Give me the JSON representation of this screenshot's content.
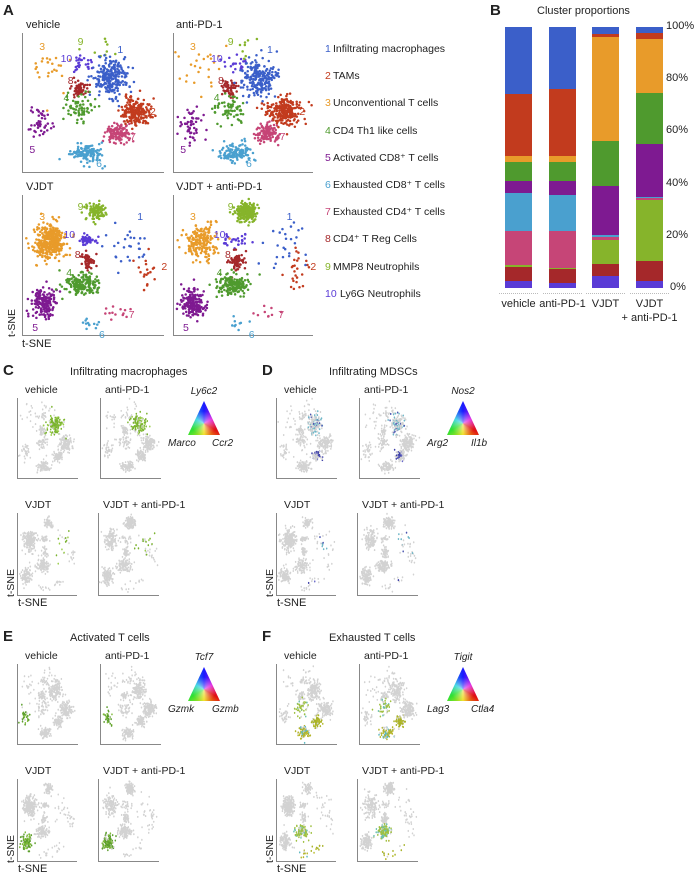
{
  "conditions": [
    "vehicle",
    "anti-PD-1",
    "VJDT",
    "VJDT + anti-PD-1"
  ],
  "axis_label": "t-SNE",
  "panel_a": {
    "letter": "A",
    "legend": [
      {
        "num": "1",
        "label": "Infiltrating macrophages",
        "color": "#3b5fc9"
      },
      {
        "num": "2",
        "label": "TAMs",
        "color": "#c23b1e"
      },
      {
        "num": "3",
        "label": "Unconventional T cells",
        "color": "#e89b2a"
      },
      {
        "num": "4",
        "label": "CD4 Th1 like cells",
        "color": "#4f9a2e"
      },
      {
        "num": "5",
        "label": "Activated CD8⁺ T cells",
        "color": "#7e1a91"
      },
      {
        "num": "6",
        "label": "Exhausted CD8⁺ T cells",
        "color": "#4aa0cf"
      },
      {
        "num": "7",
        "label": "Exhausted CD4⁺ T cells",
        "color": "#c64577"
      },
      {
        "num": "8",
        "label": "CD4⁺ T Reg Cells",
        "color": "#a5282a"
      },
      {
        "num": "9",
        "label": "MMP8 Neutrophils",
        "color": "#86b42b"
      },
      {
        "num": "10",
        "label": "Ly6G Neutrophils",
        "color": "#5a3bd6"
      }
    ]
  },
  "panel_b": {
    "letter": "B"
  },
  "chart_data": {
    "type": "bar",
    "stacked": true,
    "title": "Cluster proportions",
    "categories": [
      "vehicle",
      "anti-PD-1",
      "VJDT",
      "VJDT\n+ anti-PD-1"
    ],
    "category_lines": [
      [
        "vehicle"
      ],
      [
        "anti-PD-1"
      ],
      [
        "VJDT"
      ],
      [
        "VJDT",
        "+ anti-PD-1"
      ]
    ],
    "yticks": [
      "0%",
      "20%",
      "40%",
      "60%",
      "80%",
      "100%"
    ],
    "ylim": [
      0,
      100
    ],
    "stack_order_bottom_to_top": [
      "10",
      "8",
      "9",
      "7",
      "6",
      "5",
      "4",
      "3",
      "2",
      "1"
    ],
    "series": [
      {
        "cluster": "10",
        "values": [
          2.5,
          1.9,
          4.5,
          2.8
        ]
      },
      {
        "cluster": "8",
        "values": [
          5.7,
          5.5,
          4.7,
          7.6
        ]
      },
      {
        "cluster": "9",
        "values": [
          0.5,
          0.4,
          9.3,
          23.3
        ]
      },
      {
        "cluster": "7",
        "values": [
          13.0,
          13.9,
          1.0,
          0.6
        ]
      },
      {
        "cluster": "6",
        "values": [
          14.6,
          14.0,
          0.9,
          0.6
        ]
      },
      {
        "cluster": "5",
        "values": [
          4.7,
          5.4,
          18.5,
          20.1
        ]
      },
      {
        "cluster": "4",
        "values": [
          7.4,
          7.0,
          17.6,
          19.6
        ]
      },
      {
        "cluster": "3",
        "values": [
          2.2,
          2.3,
          39.5,
          20.8
        ]
      },
      {
        "cluster": "2",
        "values": [
          23.7,
          25.7,
          1.5,
          2.3
        ]
      },
      {
        "cluster": "1",
        "values": [
          25.7,
          23.9,
          2.5,
          2.3
        ]
      }
    ]
  },
  "panel_c": {
    "letter": "C",
    "title": "Infiltrating macrophages",
    "genes": {
      "top": "Ly6c2",
      "left": "Marco",
      "right": "Ccr2"
    }
  },
  "panel_d": {
    "letter": "D",
    "title": "Infiltrating MDSCs",
    "genes": {
      "top": "Nos2",
      "left": "Arg2",
      "right": "Il1b"
    }
  },
  "panel_e": {
    "letter": "E",
    "title": "Activated T cells",
    "genes": {
      "top": "Tcf7",
      "left": "Gzmk",
      "right": "Gzmb"
    }
  },
  "panel_f": {
    "letter": "F",
    "title": "Exhausted T cells",
    "genes": {
      "top": "Tigit",
      "left": "Lag3",
      "right": "Ctla4"
    }
  }
}
